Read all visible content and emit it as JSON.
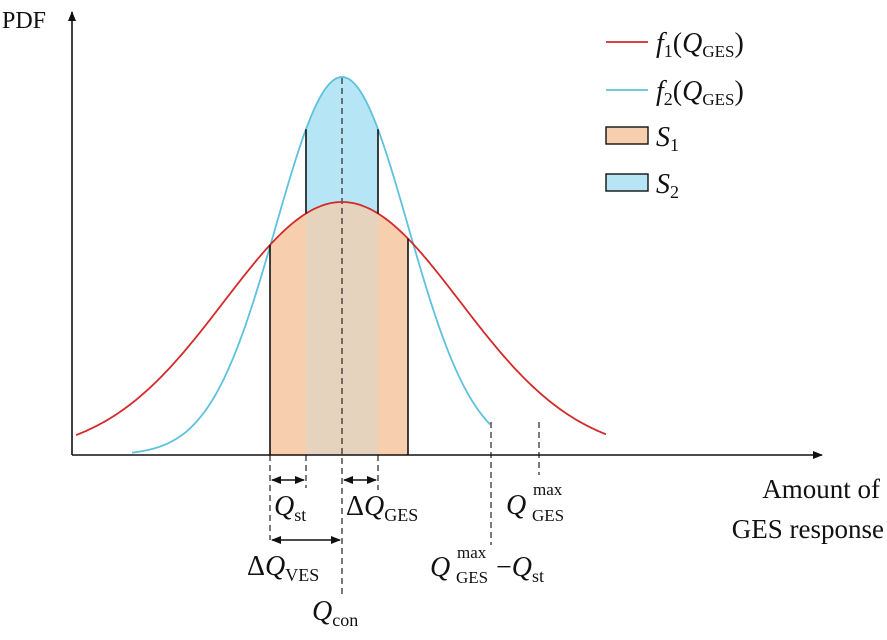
{
  "axes": {
    "y_label": "PDF",
    "x_label_line1": "Amount of",
    "x_label_line2": "GES response"
  },
  "legend": {
    "f1": {
      "name": "f",
      "sub": "1",
      "open": "(",
      "var": "Q",
      "var_sub": "GES",
      "close": ")",
      "color": "#d42a2a"
    },
    "f2": {
      "name": "f",
      "sub": "2",
      "open": "(",
      "var": "Q",
      "var_sub": "GES",
      "close": ")",
      "color": "#5ec2dc"
    },
    "s1": {
      "name": "S",
      "sub": "1",
      "color": "#f8cfae"
    },
    "s2": {
      "name": "S",
      "sub": "2",
      "color": "#b6e6f6"
    }
  },
  "annotations": {
    "q_st": {
      "main": "Q",
      "sub": "st"
    },
    "delta_q_ges": {
      "delta": "Δ",
      "main": "Q",
      "sub": "GES"
    },
    "q_ges_max": {
      "main": "Q",
      "sub": "GES",
      "sup": "max"
    },
    "delta_q_ves": {
      "delta": "Δ",
      "main": "Q",
      "sub": "VES"
    },
    "q_ges_max_minus_q_st": {
      "main": "Q",
      "sub": "GES",
      "sup": "max",
      "minus": "−",
      "main2": "Q",
      "sub2": "st"
    },
    "q_con": {
      "main": "Q",
      "sub": "con"
    }
  }
}
